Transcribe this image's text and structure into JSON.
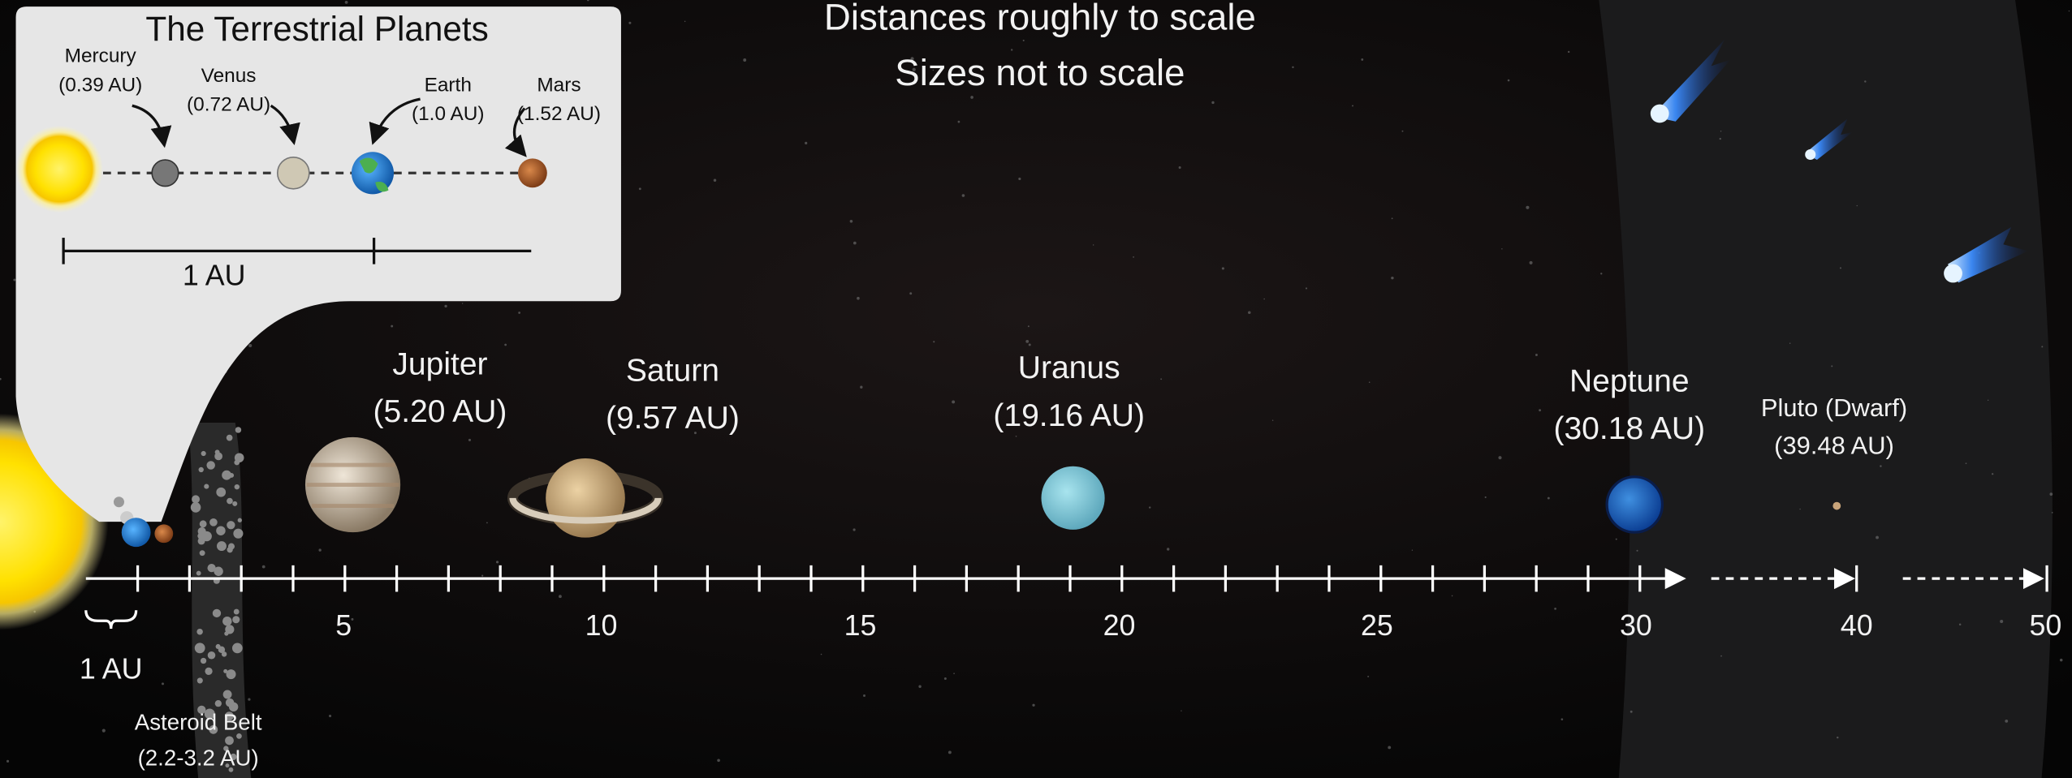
{
  "header": {
    "line1": "Distances roughly to scale",
    "line2": "Sizes not to scale"
  },
  "inset": {
    "title": "The Terrestrial Planets",
    "planets": [
      {
        "name": "Mercury",
        "distance": "(0.39 AU)"
      },
      {
        "name": "Venus",
        "distance": "(0.72 AU)"
      },
      {
        "name": "Earth",
        "distance": "(1.0 AU)"
      },
      {
        "name": "Mars",
        "distance": "(1.52 AU)"
      }
    ],
    "scale_label": "1 AU"
  },
  "planets": [
    {
      "name": "Jupiter",
      "distance": "(5.20 AU)"
    },
    {
      "name": "Saturn",
      "distance": "(9.57 AU)"
    },
    {
      "name": "Uranus",
      "distance": "(19.16 AU)"
    },
    {
      "name": "Neptune",
      "distance": "(30.18 AU)"
    },
    {
      "name": "Pluto (Dwarf)",
      "distance": "(39.48 AU)"
    }
  ],
  "axis": {
    "ticks": [
      5,
      10,
      15,
      20,
      25,
      30,
      40,
      50
    ],
    "unit_label": "1 AU"
  },
  "asteroid_belt": {
    "name": "Asteroid Belt",
    "range": "(2.2-3.2 AU)"
  }
}
